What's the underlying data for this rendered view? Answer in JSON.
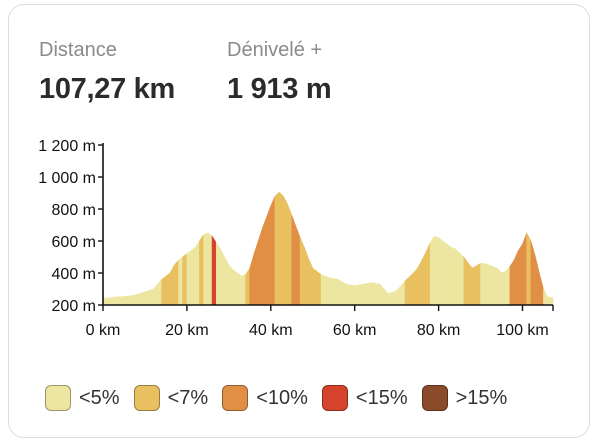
{
  "stats": {
    "distance_label": "Distance",
    "distance_value": "107,27 km",
    "elevation_label": "Dénivelé +",
    "elevation_value": "1 913 m"
  },
  "legend": [
    {
      "label": "<5%",
      "color": "#ede6a0"
    },
    {
      "label": "<7%",
      "color": "#e8c060"
    },
    {
      "label": "<10%",
      "color": "#e08f45"
    },
    {
      "label": "<15%",
      "color": "#d5432c"
    },
    {
      "label": ">15%",
      "color": "#8b4a29"
    }
  ],
  "chart_data": {
    "type": "area",
    "xlabel": "",
    "ylabel": "",
    "xlim": [
      0,
      107.27
    ],
    "ylim": [
      200,
      1200
    ],
    "x_ticks": [
      0,
      20,
      40,
      60,
      80,
      100
    ],
    "x_tick_labels": [
      "0 km",
      "20 km",
      "40 km",
      "60 km",
      "80 km",
      "100 km"
    ],
    "y_ticks": [
      200,
      400,
      600,
      800,
      1000,
      1200
    ],
    "y_tick_labels": [
      "200 m",
      "400 m",
      "600 m",
      "800 m",
      "1 000 m",
      "1 200 m"
    ],
    "fill_color_by_grade": true,
    "profile": {
      "x": [
        0,
        3,
        6,
        8,
        12,
        14,
        16,
        17,
        18,
        19,
        20,
        22,
        23,
        24,
        25,
        26,
        27,
        28,
        29,
        30,
        31,
        32,
        33,
        34,
        35,
        36,
        37,
        38,
        39,
        40,
        41,
        42,
        43,
        44,
        45,
        46,
        47,
        48,
        49,
        50,
        52,
        54,
        56,
        58,
        60,
        62,
        64,
        66,
        67,
        68,
        70,
        72,
        74,
        75,
        76,
        77,
        78,
        79,
        80,
        81,
        82,
        83,
        84,
        86,
        88,
        90,
        91,
        92,
        93,
        94,
        95,
        96,
        97,
        98,
        99,
        100,
        101,
        102,
        103,
        104,
        105,
        106,
        107.27
      ],
      "y": [
        240,
        250,
        255,
        265,
        300,
        360,
        400,
        450,
        480,
        500,
        520,
        560,
        600,
        640,
        650,
        630,
        590,
        550,
        500,
        450,
        420,
        400,
        380,
        390,
        430,
        520,
        600,
        680,
        750,
        820,
        880,
        905,
        880,
        830,
        760,
        690,
        620,
        560,
        490,
        430,
        390,
        370,
        360,
        330,
        320,
        330,
        340,
        330,
        300,
        270,
        290,
        350,
        400,
        430,
        480,
        530,
        590,
        630,
        620,
        600,
        580,
        560,
        550,
        500,
        430,
        460,
        460,
        450,
        440,
        430,
        400,
        410,
        440,
        480,
        540,
        580,
        650,
        600,
        510,
        400,
        300,
        250,
        245
      ],
      "grade_class": [
        "<5%",
        "<5%",
        "<5%",
        "<5%",
        "<5%",
        "<7%",
        "<7%",
        "<7%",
        "<5%",
        "<7%",
        "<5%",
        "<5%",
        "<7%",
        "<5%",
        "<5%",
        "<15%",
        "<5%",
        "<5%",
        "<5%",
        "<5%",
        "<5%",
        "<5%",
        "<5%",
        "<7%",
        "<10%",
        "<10%",
        "<10%",
        "<10%",
        "<10%",
        "<10%",
        "<7%",
        "<7%",
        "<7%",
        "<7%",
        "<10%",
        "<10%",
        "<7%",
        "<7%",
        "<7%",
        "<7%",
        "<5%",
        "<5%",
        "<5%",
        "<5%",
        "<5%",
        "<5%",
        "<5%",
        "<5%",
        "<5%",
        "<5%",
        "<5%",
        "<7%",
        "<7%",
        "<7%",
        "<7%",
        "<7%",
        "<5%",
        "<5%",
        "<5%",
        "<5%",
        "<5%",
        "<5%",
        "<5%",
        "<7%",
        "<7%",
        "<5%",
        "<5%",
        "<5%",
        "<5%",
        "<5%",
        "<5%",
        "<5%",
        "<10%",
        "<10%",
        "<10%",
        "<10%",
        "<7%",
        "<10%",
        "<10%",
        "<10%",
        "<5%",
        "<5%"
      ]
    }
  }
}
